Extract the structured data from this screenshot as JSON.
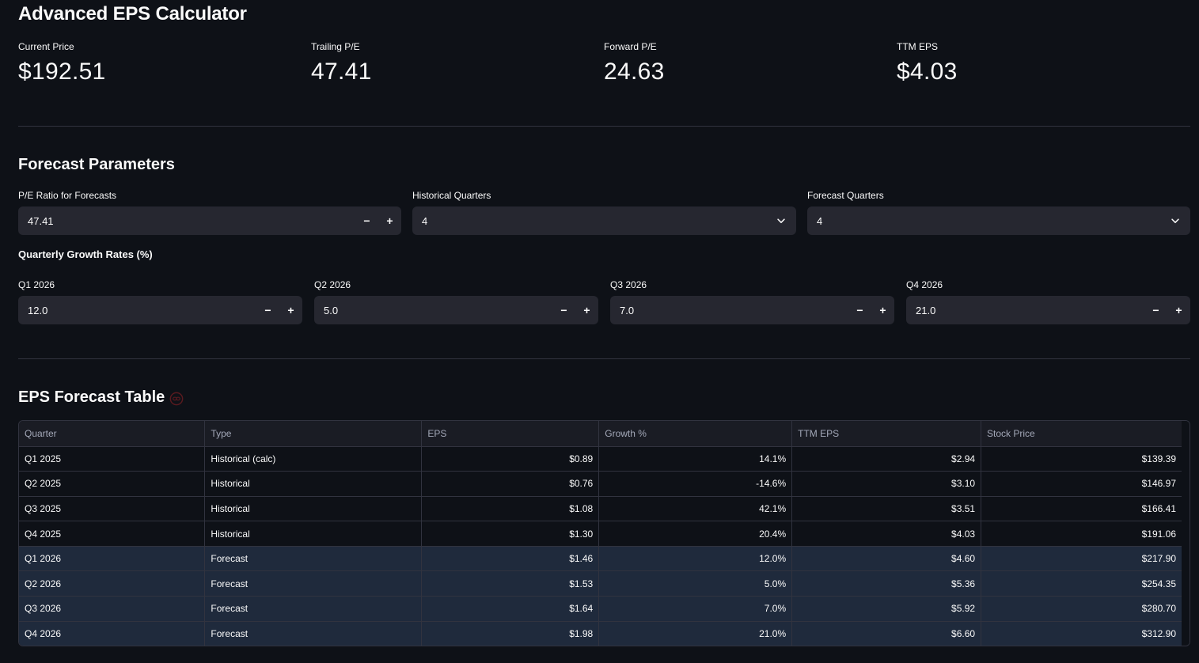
{
  "app": {
    "title": "Advanced EPS Calculator"
  },
  "metrics": [
    {
      "label": "Current Price",
      "value": "$192.51"
    },
    {
      "label": "Trailing P/E",
      "value": "47.41"
    },
    {
      "label": "Forward P/E",
      "value": "24.63"
    },
    {
      "label": "TTM EPS",
      "value": "$4.03"
    }
  ],
  "forecast_params": {
    "title": "Forecast Parameters",
    "pe_ratio": {
      "label": "P/E Ratio for Forecasts",
      "value": "47.41"
    },
    "historical_quarters": {
      "label": "Historical Quarters",
      "value": "4"
    },
    "forecast_quarters": {
      "label": "Forecast Quarters",
      "value": "4"
    },
    "stepper": {
      "minus": "−",
      "plus": "+"
    }
  },
  "growth_rates": {
    "title": "Quarterly Growth Rates (%)",
    "inputs": [
      {
        "label": "Q1 2026",
        "value": "12.0"
      },
      {
        "label": "Q2 2026",
        "value": "5.0"
      },
      {
        "label": "Q3 2026",
        "value": "7.0"
      },
      {
        "label": "Q4 2026",
        "value": "21.0"
      }
    ]
  },
  "table": {
    "title": "EPS Forecast Table",
    "columns": [
      "Quarter",
      "Type",
      "EPS",
      "Growth %",
      "TTM EPS",
      "Stock Price"
    ],
    "rows": [
      {
        "quarter": "Q1 2025",
        "type": "Historical (calc)",
        "eps": "$0.89",
        "growth": "14.1%",
        "ttm_eps": "$2.94",
        "price": "$139.39",
        "forecast": false
      },
      {
        "quarter": "Q2 2025",
        "type": "Historical",
        "eps": "$0.76",
        "growth": "-14.6%",
        "ttm_eps": "$3.10",
        "price": "$146.97",
        "forecast": false
      },
      {
        "quarter": "Q3 2025",
        "type": "Historical",
        "eps": "$1.08",
        "growth": "42.1%",
        "ttm_eps": "$3.51",
        "price": "$166.41",
        "forecast": false
      },
      {
        "quarter": "Q4 2025",
        "type": "Historical",
        "eps": "$1.30",
        "growth": "20.4%",
        "ttm_eps": "$4.03",
        "price": "$191.06",
        "forecast": false
      },
      {
        "quarter": "Q1 2026",
        "type": "Forecast",
        "eps": "$1.46",
        "growth": "12.0%",
        "ttm_eps": "$4.60",
        "price": "$217.90",
        "forecast": true
      },
      {
        "quarter": "Q2 2026",
        "type": "Forecast",
        "eps": "$1.53",
        "growth": "5.0%",
        "ttm_eps": "$5.36",
        "price": "$254.35",
        "forecast": true
      },
      {
        "quarter": "Q3 2026",
        "type": "Forecast",
        "eps": "$1.64",
        "growth": "7.0%",
        "ttm_eps": "$5.92",
        "price": "$280.70",
        "forecast": true
      },
      {
        "quarter": "Q4 2026",
        "type": "Forecast",
        "eps": "$1.98",
        "growth": "21.0%",
        "ttm_eps": "$6.60",
        "price": "$312.90",
        "forecast": true
      }
    ]
  },
  "colors": {
    "background": "#0e1117",
    "input_bg": "#262730",
    "forecast_row": "#1f2a3c",
    "border": "#31333f"
  },
  "icons": {
    "select": "chevron-down-icon",
    "table_title": "link-icon"
  }
}
